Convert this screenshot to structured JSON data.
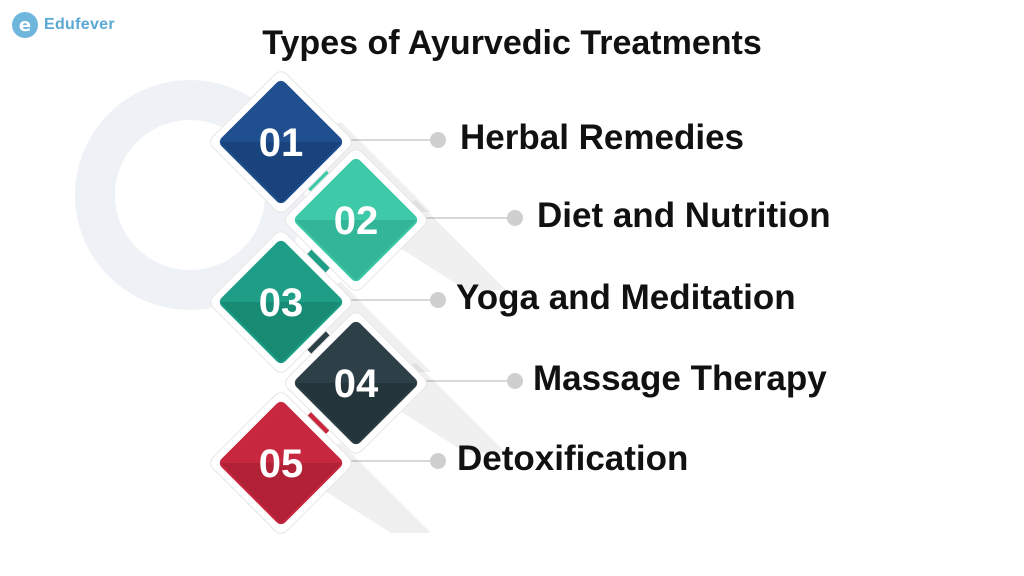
{
  "brand": {
    "name": "Edufever",
    "mark": "e"
  },
  "title": "Types of Ayurvedic Treatments",
  "items": [
    {
      "number": "01",
      "label": "Herbal Remedies",
      "color": "#1f4f8f",
      "color_dark": "#123566"
    },
    {
      "number": "02",
      "label": "Diet and Nutrition",
      "color": "#3ec9a8",
      "color_dark": "#24a083"
    },
    {
      "number": "03",
      "label": "Yoga and Meditation",
      "color": "#1e9e86",
      "color_dark": "#127460"
    },
    {
      "number": "04",
      "label": "Massage Therapy",
      "color": "#2d3f47",
      "color_dark": "#1a272d"
    },
    {
      "number": "05",
      "label": "Detoxification",
      "color": "#c8283f",
      "color_dark": "#941a2c"
    }
  ]
}
